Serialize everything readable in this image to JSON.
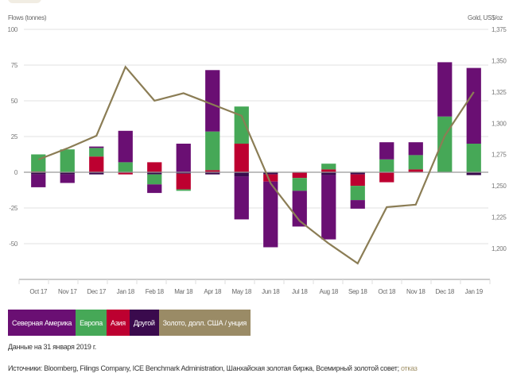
{
  "chart_data": {
    "type": "bar",
    "stacked": true,
    "categories": [
      "Oct 17",
      "Nov 17",
      "Dec 17",
      "Jan 18",
      "Feb 18",
      "Mar 18",
      "Apr 18",
      "May 18",
      "Jun 18",
      "Jul 18",
      "Aug 18",
      "Sep 18",
      "Oct 18",
      "Nov 18",
      "Dec 18",
      "Jan 19"
    ],
    "ylabel": "Flows (tonnes)",
    "y2label": "Gold, US$/oz",
    "ylim": [
      -75,
      100
    ],
    "yticks": [
      100,
      75,
      50,
      25,
      0,
      -25,
      -50
    ],
    "ytick_labels": [
      "100",
      "75",
      "50",
      "25",
      "0",
      "-25",
      "-50"
    ],
    "y2lim": [
      1175,
      1375
    ],
    "y2ticks": [
      1375,
      1350,
      1325,
      1300,
      1275,
      1250,
      1225,
      1200
    ],
    "y2tick_labels": [
      "1,375",
      "1,350",
      "1,325",
      "1,300",
      "1,275",
      "1,250",
      "1,225",
      "1,200"
    ],
    "grid": true,
    "series": [
      {
        "name": "Северная Америка",
        "key": "na",
        "color": "#6a0f73",
        "values": [
          -9,
          -6,
          1,
          22,
          -6,
          20,
          43,
          -30,
          -46,
          -25,
          -45,
          -6,
          12,
          9,
          38,
          53
        ]
      },
      {
        "name": "Европа",
        "key": "eu",
        "color": "#46a857",
        "values": [
          12,
          16,
          6,
          7,
          -7,
          -1,
          27,
          26,
          0,
          -9,
          4,
          -10,
          9,
          10,
          39,
          20
        ]
      },
      {
        "name": "Азия",
        "key": "asia",
        "color": "#bd0030",
        "values": [
          0.5,
          0,
          11,
          -1.5,
          7,
          -11,
          1.5,
          20,
          -5,
          -4,
          2,
          -8,
          -7,
          2,
          0,
          0
        ]
      },
      {
        "name": "Другой",
        "key": "other",
        "color": "#3a0a4d",
        "values": [
          -1.5,
          -1.5,
          -1.5,
          0,
          -1.5,
          -1,
          -1.5,
          -3,
          -1.5,
          0,
          -2,
          -1.5,
          0,
          0,
          0,
          -2
        ]
      }
    ],
    "line_series": {
      "name": "Золото, долл. США / унция",
      "axis": "right",
      "color": "#8b7d55",
      "values": [
        1271,
        1280,
        1290,
        1345,
        1318,
        1324,
        1315,
        1306,
        1252,
        1222,
        1204,
        1188,
        1233,
        1235,
        1290,
        1325
      ]
    },
    "legend_position": "bottom-left"
  },
  "legend": [
    {
      "label": "Северная Америка",
      "color": "#6a0f73"
    },
    {
      "label": "Европа",
      "color": "#46a857"
    },
    {
      "label": "Азия",
      "color": "#bd0030"
    },
    {
      "label": "Другой",
      "color": "#3a0a4d"
    },
    {
      "label": "Золото, долл. США / унция",
      "color": "#9a8b66"
    }
  ],
  "note": "Данные на 31 января 2019 г.",
  "sources": {
    "text": "Источники: Bloomberg, Filings Company, ICE Benchmark Administration, Шанхайская золотая биржа, Всемирный золотой совет; ",
    "link": "отказ"
  }
}
